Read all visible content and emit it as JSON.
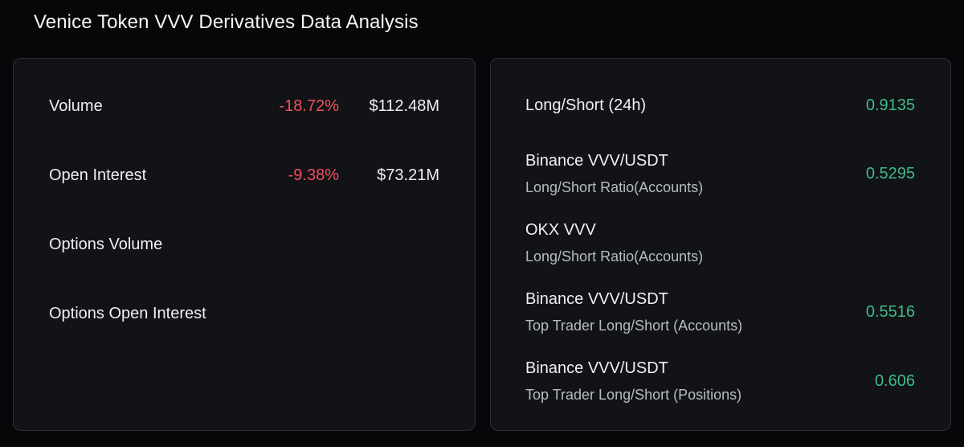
{
  "header": {
    "title": "Venice Token VVV Derivatives Data Analysis"
  },
  "metrics": [
    {
      "label": "Volume",
      "change": "-18.72%",
      "value": "$112.48M"
    },
    {
      "label": "Open Interest",
      "change": "-9.38%",
      "value": "$73.21M"
    },
    {
      "label": "Options Volume",
      "change": "",
      "value": ""
    },
    {
      "label": "Options Open Interest",
      "change": "",
      "value": ""
    }
  ],
  "long_short": [
    {
      "title": "Long/Short (24h)",
      "sub": "",
      "value": "0.9135"
    },
    {
      "title": "Binance VVV/USDT",
      "sub": "Long/Short Ratio(Accounts)",
      "value": "0.5295"
    },
    {
      "title": "OKX VVV",
      "sub": "Long/Short Ratio(Accounts)",
      "value": ""
    },
    {
      "title": "Binance VVV/USDT",
      "sub": "Top Trader Long/Short (Accounts)",
      "value": "0.5516"
    },
    {
      "title": "Binance VVV/USDT",
      "sub": "Top Trader Long/Short (Positions)",
      "value": "0.606"
    }
  ],
  "colors": {
    "negative": "#f0505c",
    "positive": "#3fba8a",
    "panel": "#121317",
    "background": "#060709"
  }
}
